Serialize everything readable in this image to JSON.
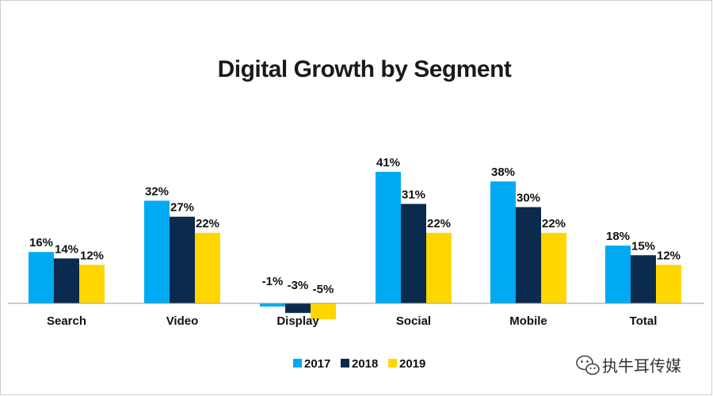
{
  "watermark": {
    "text": "执牛耳传媒",
    "icon": "wechat-icon"
  },
  "colors": {
    "2017": "#00aaf2",
    "2018": "#0a2a4e",
    "2019": "#ffd600",
    "axis": "#999999"
  },
  "chart_data": {
    "type": "bar",
    "title": "Digital Growth by Segment",
    "xlabel": "",
    "ylabel": "",
    "ylim": [
      -6,
      45
    ],
    "grid": false,
    "legend_position": "bottom",
    "categories": [
      "Search",
      "Video",
      "Display",
      "Social",
      "Mobile",
      "Total"
    ],
    "series": [
      {
        "name": "2017",
        "values": [
          16,
          32,
          -1,
          41,
          38,
          18
        ],
        "labels": [
          "16%",
          "32%",
          "-1%",
          "41%",
          "38%",
          "18%"
        ]
      },
      {
        "name": "2018",
        "values": [
          14,
          27,
          -3,
          31,
          30,
          15
        ],
        "labels": [
          "14%",
          "27%",
          "-3%",
          "31%",
          "30%",
          "15%"
        ]
      },
      {
        "name": "2019",
        "values": [
          12,
          22,
          -5,
          22,
          22,
          12
        ],
        "labels": [
          "12%",
          "22%",
          "-5%",
          "22%",
          "22%",
          "12%"
        ]
      }
    ]
  }
}
